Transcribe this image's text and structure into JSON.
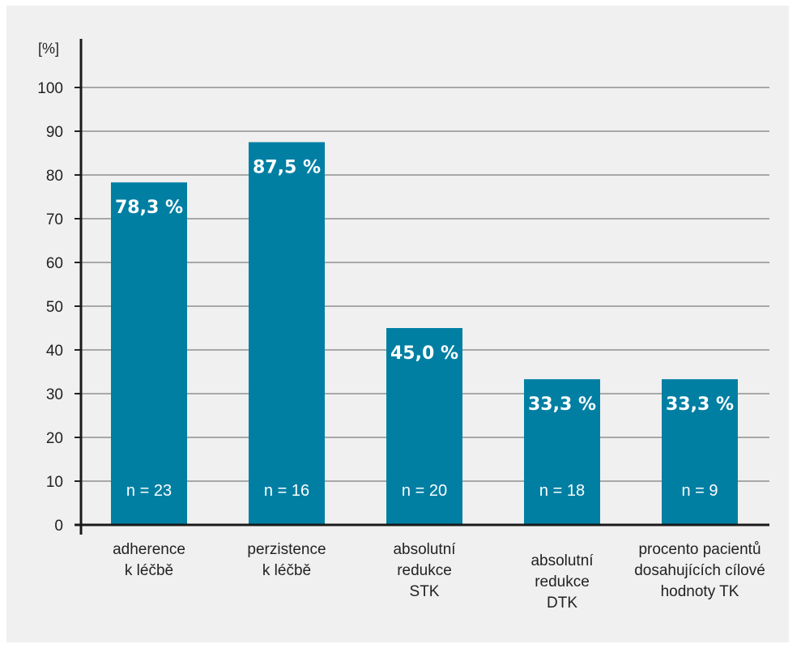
{
  "chart_data": {
    "type": "bar",
    "ylabel": "[%]",
    "ylim": [
      0,
      100
    ],
    "yticks": [
      0,
      10,
      20,
      30,
      40,
      50,
      60,
      70,
      80,
      90,
      100
    ],
    "grid": true,
    "bar_color": "#007fa3",
    "categories": [
      [
        "adherence",
        "k léčbě"
      ],
      [
        "perzistence",
        "k léčbě"
      ],
      [
        "absolutní",
        "redukce",
        "STK"
      ],
      [
        "absolutní",
        "redukce",
        "DTK"
      ],
      [
        "procento pacientů",
        "dosahujících cílové",
        "hodnoty TK"
      ]
    ],
    "values": [
      78.3,
      87.5,
      45.0,
      33.3,
      33.3
    ],
    "value_labels": [
      "78,3 %",
      "87,5 %",
      "45,0 %",
      "33,3 %",
      "33,3 %"
    ],
    "n_labels": [
      "n = 23",
      "n = 16",
      "n = 20",
      "n = 18",
      "n = 9"
    ]
  }
}
